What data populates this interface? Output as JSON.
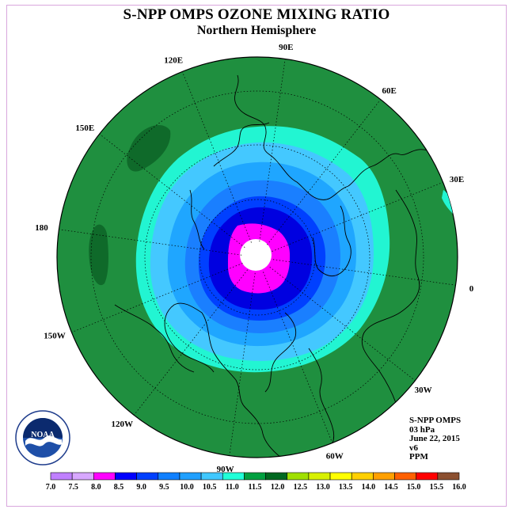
{
  "title": "S-NPP OMPS OZONE MIXING RATIO",
  "subtitle": "Northern Hemisphere",
  "info": {
    "instrument": "S-NPP OMPS",
    "level": "03 hPa",
    "date": "June 22, 2015",
    "version": "v6",
    "units": "PPM"
  },
  "logo": {
    "text": "NOAA"
  },
  "longitude_labels": [
    "90E",
    "60E",
    "30E",
    "0",
    "30W",
    "60W",
    "90W",
    "120W",
    "150W",
    "180",
    "150E",
    "120E"
  ],
  "colorbar": {
    "labels": [
      "7.0",
      "7.5",
      "8.0",
      "8.5",
      "9.0",
      "9.5",
      "10.0",
      "10.5",
      "11.0",
      "11.5",
      "12.0",
      "12.5",
      "13.0",
      "13.5",
      "14.0",
      "14.5",
      "15.0",
      "15.5",
      "16.0"
    ],
    "colors": [
      "#c080ff",
      "#d8a8ff",
      "#ff00ff",
      "#0000ff",
      "#0040ff",
      "#1080ff",
      "#20a0ff",
      "#40c8ff",
      "#20ffd8",
      "#00a040",
      "#006820",
      "#a0e000",
      "#d8f000",
      "#ffff00",
      "#ffd000",
      "#ffa000",
      "#ff6000",
      "#ff0000",
      "#8c5030"
    ]
  },
  "map_colors": {
    "outer_green": "#1f8f3f",
    "dark_green": "#0f6a2a",
    "cyan": "#22f5d2",
    "ring_10_5": "#44c8ff",
    "ring_10_0": "#1fa6ff",
    "ring_9_5": "#1a7fff",
    "ring_9_0": "#0040ff",
    "ring_8_5": "#0000e0",
    "magenta": "#ff00ff",
    "pole": "#ffffff"
  }
}
